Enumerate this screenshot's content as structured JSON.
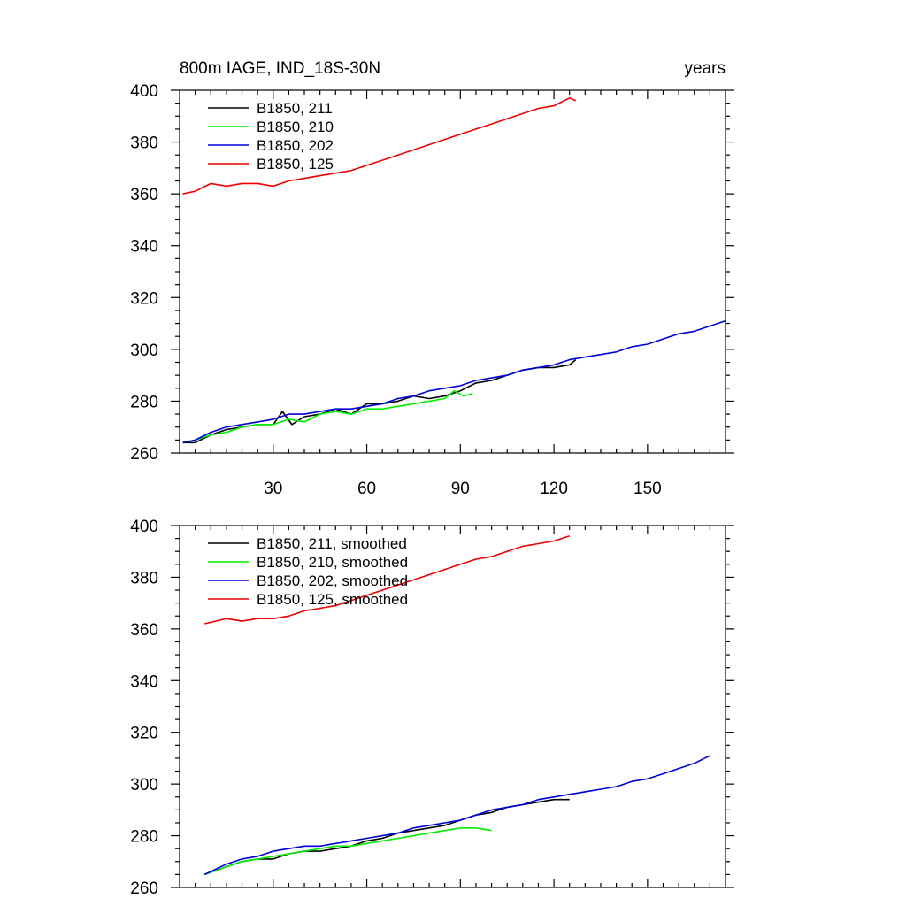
{
  "chart_data": [
    {
      "type": "line",
      "title_left": "800m IAGE, IND_18S-30N",
      "title_right": "years",
      "xlim": [
        0,
        175
      ],
      "ylim": [
        260,
        400
      ],
      "xticks": [
        30,
        60,
        90,
        120,
        150
      ],
      "xtick_labels": [
        "30",
        "60",
        "90",
        "120",
        "150"
      ],
      "yticks": [
        260,
        280,
        300,
        320,
        340,
        360,
        380,
        400
      ],
      "ytick_labels": [
        "260",
        "280",
        "300",
        "320",
        "340",
        "360",
        "380",
        "400"
      ],
      "grid": false,
      "legend_position": "top-left",
      "series": [
        {
          "name": "B1850, 211",
          "color": "#000000",
          "x": [
            1,
            5,
            10,
            15,
            20,
            25,
            30,
            33,
            36,
            40,
            45,
            50,
            55,
            60,
            65,
            70,
            75,
            80,
            85,
            90,
            95,
            100,
            105,
            110,
            115,
            120,
            125,
            127
          ],
          "y": [
            264,
            264,
            267,
            269,
            270,
            271,
            271,
            276,
            271,
            274,
            275,
            277,
            275,
            279,
            279,
            280,
            282,
            281,
            282,
            284,
            287,
            288,
            290,
            292,
            293,
            293,
            294,
            296
          ]
        },
        {
          "name": "B1850, 210",
          "color": "#00ee00",
          "x": [
            1,
            5,
            10,
            15,
            20,
            25,
            30,
            35,
            40,
            45,
            50,
            55,
            60,
            65,
            70,
            75,
            80,
            85,
            88,
            91,
            94
          ],
          "y": [
            264,
            265,
            267,
            268,
            270,
            271,
            271,
            273,
            272,
            275,
            276,
            275,
            277,
            277,
            278,
            279,
            280,
            281,
            284,
            282,
            283
          ]
        },
        {
          "name": "B1850, 202",
          "color": "#0000dd",
          "x": [
            1,
            5,
            10,
            15,
            20,
            25,
            30,
            35,
            40,
            45,
            50,
            55,
            60,
            65,
            70,
            75,
            80,
            85,
            90,
            95,
            100,
            105,
            110,
            115,
            120,
            125,
            130,
            135,
            140,
            145,
            150,
            155,
            160,
            165,
            170,
            175
          ],
          "y": [
            264,
            265,
            268,
            270,
            271,
            272,
            273,
            275,
            275,
            276,
            277,
            277,
            278,
            279,
            281,
            282,
            284,
            285,
            286,
            288,
            289,
            290,
            292,
            293,
            294,
            296,
            297,
            298,
            299,
            301,
            302,
            304,
            306,
            307,
            309,
            311
          ]
        },
        {
          "name": "B1850, 125",
          "color": "#ee0000",
          "x": [
            1,
            5,
            10,
            15,
            20,
            25,
            30,
            35,
            40,
            45,
            50,
            55,
            60,
            65,
            70,
            75,
            80,
            85,
            90,
            95,
            100,
            105,
            110,
            115,
            120,
            125,
            127
          ],
          "y": [
            360,
            361,
            364,
            363,
            364,
            364,
            363,
            365,
            366,
            367,
            368,
            369,
            371,
            373,
            375,
            377,
            379,
            381,
            383,
            385,
            387,
            389,
            391,
            393,
            394,
            397,
            396
          ]
        }
      ]
    },
    {
      "type": "line",
      "xlim": [
        0,
        175
      ],
      "ylim": [
        260,
        400
      ],
      "xticks": [
        30,
        60,
        90,
        120,
        150
      ],
      "yticks": [
        260,
        280,
        300,
        320,
        340,
        360,
        380,
        400
      ],
      "ytick_labels": [
        "260",
        "280",
        "300",
        "320",
        "340",
        "360",
        "380",
        "400"
      ],
      "grid": false,
      "legend_position": "top-left",
      "series": [
        {
          "name": "B1850, 211, smoothed",
          "color": "#000000",
          "x": [
            8,
            15,
            20,
            25,
            30,
            35,
            40,
            45,
            50,
            55,
            60,
            65,
            70,
            75,
            80,
            85,
            90,
            95,
            100,
            105,
            110,
            115,
            120,
            125
          ],
          "y": [
            265,
            268,
            270,
            271,
            271,
            273,
            274,
            274,
            275,
            276,
            278,
            279,
            281,
            282,
            283,
            284,
            286,
            288,
            289,
            291,
            292,
            293,
            294,
            294
          ]
        },
        {
          "name": "B1850, 210, smoothed",
          "color": "#00ee00",
          "x": [
            8,
            15,
            20,
            25,
            30,
            35,
            40,
            45,
            50,
            55,
            60,
            65,
            70,
            75,
            80,
            85,
            90,
            95,
            100
          ],
          "y": [
            265,
            268,
            270,
            271,
            272,
            273,
            274,
            275,
            276,
            276,
            277,
            278,
            279,
            280,
            281,
            282,
            283,
            283,
            282
          ]
        },
        {
          "name": "B1850, 202, smoothed",
          "color": "#0000dd",
          "x": [
            8,
            15,
            20,
            25,
            30,
            35,
            40,
            45,
            50,
            55,
            60,
            65,
            70,
            75,
            80,
            85,
            90,
            95,
            100,
            105,
            110,
            115,
            120,
            125,
            130,
            135,
            140,
            145,
            150,
            155,
            160,
            165,
            170
          ],
          "y": [
            265,
            269,
            271,
            272,
            274,
            275,
            276,
            276,
            277,
            278,
            279,
            280,
            281,
            283,
            284,
            285,
            286,
            288,
            290,
            291,
            292,
            294,
            295,
            296,
            297,
            298,
            299,
            301,
            302,
            304,
            306,
            308,
            311
          ]
        },
        {
          "name": "B1850, 125, smoothed",
          "color": "#ee0000",
          "x": [
            8,
            15,
            20,
            25,
            30,
            35,
            40,
            45,
            50,
            55,
            60,
            65,
            70,
            75,
            80,
            85,
            90,
            95,
            100,
            105,
            110,
            115,
            120,
            125
          ],
          "y": [
            362,
            364,
            363,
            364,
            364,
            365,
            367,
            368,
            369,
            371,
            373,
            375,
            377,
            379,
            381,
            383,
            385,
            387,
            388,
            390,
            392,
            393,
            394,
            396
          ]
        }
      ]
    }
  ]
}
